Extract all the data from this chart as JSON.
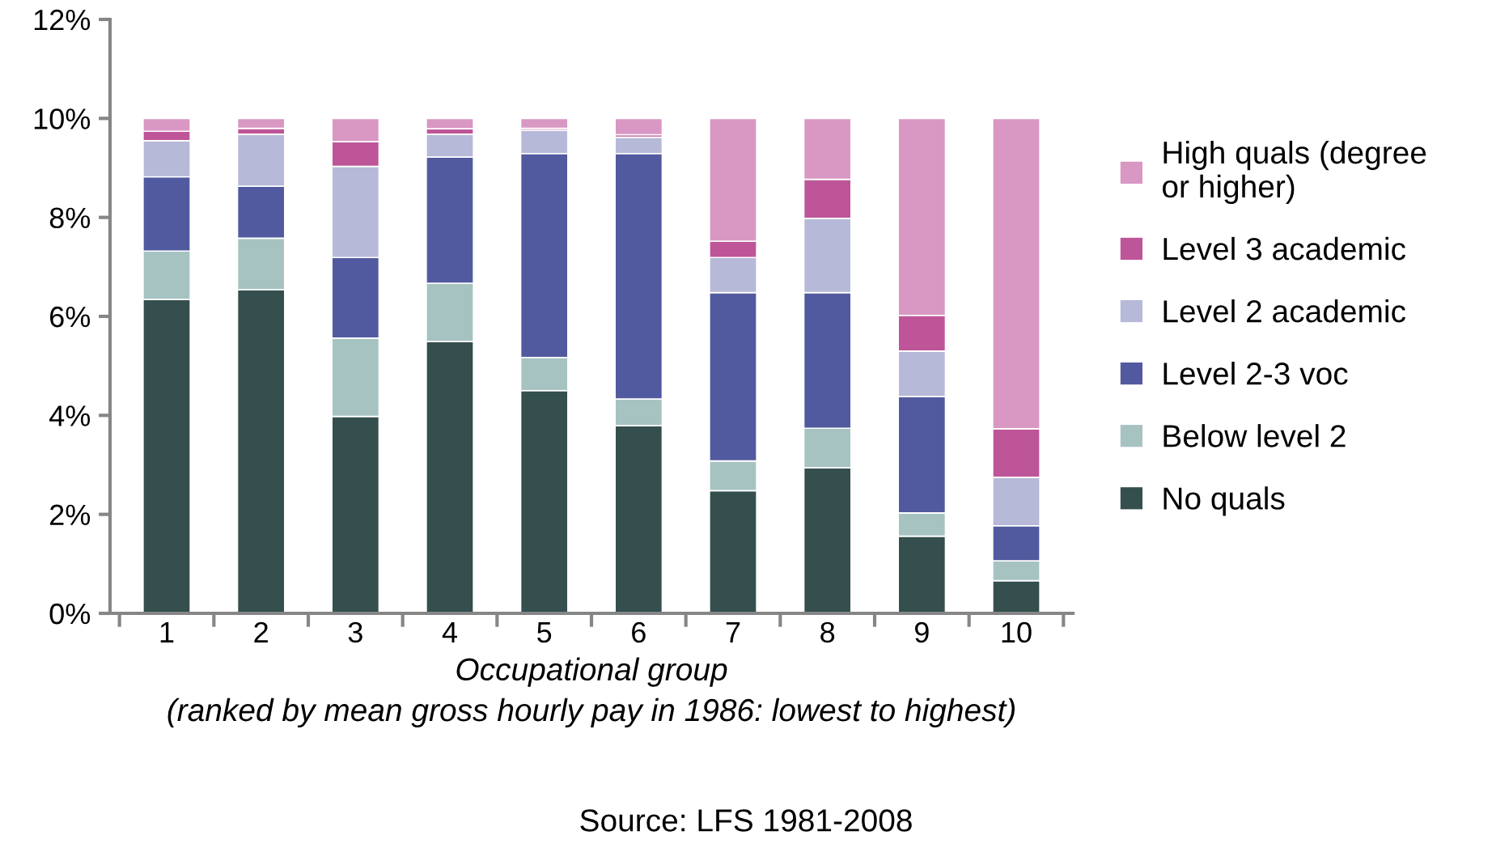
{
  "chart_data": {
    "type": "bar",
    "stacked": true,
    "categories": [
      "1",
      "2",
      "3",
      "4",
      "5",
      "6",
      "7",
      "8",
      "9",
      "10"
    ],
    "series": [
      {
        "name": "No quals",
        "color": "#344f4d",
        "values": [
          6.34,
          6.54,
          3.98,
          5.49,
          4.5,
          3.79,
          2.48,
          2.94,
          1.56,
          0.66
        ]
      },
      {
        "name": "Below level 2",
        "color": "#a6c3c2",
        "values": [
          0.98,
          1.04,
          1.58,
          1.18,
          0.67,
          0.54,
          0.6,
          0.8,
          0.47,
          0.4
        ]
      },
      {
        "name": "Level 2-3 voc",
        "color": "#525a9f",
        "values": [
          1.5,
          1.05,
          1.63,
          2.55,
          4.12,
          4.96,
          3.4,
          2.74,
          2.35,
          0.71
        ]
      },
      {
        "name": "Level 2 academic",
        "color": "#b6b9d8",
        "values": [
          0.73,
          1.05,
          1.84,
          0.46,
          0.47,
          0.33,
          0.71,
          1.5,
          0.92,
          0.98
        ]
      },
      {
        "name": "Level 3 academic",
        "color": "#be5599",
        "values": [
          0.19,
          0.12,
          0.5,
          0.11,
          0.04,
          0.05,
          0.33,
          0.79,
          0.72,
          0.98
        ]
      },
      {
        "name": "High quals (degree\nor higher)",
        "color": "#d997c3",
        "values": [
          0.26,
          0.2,
          0.47,
          0.21,
          0.2,
          0.33,
          2.48,
          1.23,
          3.98,
          6.27
        ]
      }
    ],
    "ylim": [
      0,
      12
    ],
    "yticks": [
      {
        "value": 0,
        "label": "0%"
      },
      {
        "value": 2,
        "label": "2%"
      },
      {
        "value": 4,
        "label": "4%"
      },
      {
        "value": 6,
        "label": "6%"
      },
      {
        "value": 8,
        "label": "8%"
      },
      {
        "value": 10,
        "label": "10%"
      },
      {
        "value": 12,
        "label": "12%"
      }
    ],
    "xlabel": "Occupational group\n(ranked by mean gross hourly pay in 1986: lowest to highest)",
    "annotations": [
      "Source: LFS 1981-2008"
    ],
    "grid": false,
    "legend": "right"
  }
}
